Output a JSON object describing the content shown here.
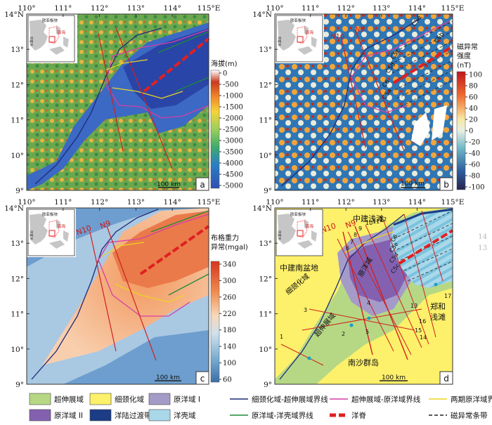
{
  "axes": {
    "lon_ticks": [
      "110°",
      "111°",
      "112°",
      "113°",
      "114°",
      "115°E"
    ],
    "lat_ticks": [
      "14°N",
      "13°",
      "12°",
      "11°",
      "10°",
      "9°"
    ]
  },
  "panels": [
    {
      "letter": "a",
      "scale": "100 km",
      "colorbar_title": "海拔(m)",
      "colorbar_ticks": [
        "0",
        "-500",
        "-1000",
        "-1500",
        "-2000",
        "-2500",
        "-3000",
        "-3500",
        "-4000",
        "-4500",
        "-5000"
      ]
    },
    {
      "letter": "b",
      "scale": "100 km",
      "colorbar_title_1": "磁异常",
      "colorbar_title_2": "强度",
      "colorbar_unit": "(nT)",
      "colorbar_ticks": [
        "100",
        "80",
        "60",
        "40",
        "20",
        "0",
        "-20",
        "-40",
        "-60",
        "-80",
        "-100"
      ],
      "labels": {
        "n10": "N10",
        "n9": "N9",
        "c5e": "C5e",
        "c5c": "C5c",
        "c5d": "C5d",
        "c6": "C6",
        "c5a": "C5a",
        "c5b": "C5b"
      }
    },
    {
      "letter": "c",
      "scale": "100 km",
      "colorbar_title_1": "布格重力",
      "colorbar_title_2": "异常(mgal)",
      "colorbar_ticks": [
        "340",
        "300",
        "260",
        "220",
        "180",
        "140",
        "100",
        "60"
      ],
      "labels": {
        "n10": "N10",
        "n9": "N9"
      }
    },
    {
      "letter": "d",
      "scale": "100 km",
      "labels": {
        "zhongjian_beach": "中建浅滩",
        "zhongjian_basin": "中建南盆地",
        "necking_zone": "细颈化域",
        "hyperextended_zone": "超伸展域",
        "proto_ocean": "原洋域",
        "zhenghe_1": "郑和",
        "zhenghe_2": "浅滩",
        "nansha": "南沙群岛",
        "n10": "N10",
        "n9": "N9",
        "c6": "C6",
        "c5e": "C5e",
        "c5d": "C5d",
        "c5c": "C5c"
      },
      "profile_numbers": [
        "1",
        "2",
        "3",
        "4",
        "5",
        "6",
        "7",
        "8",
        "9",
        "10",
        "11",
        "12",
        "13",
        "14",
        "15",
        "16",
        "17"
      ]
    }
  ],
  "inset": {
    "label_1": "欧亚板块",
    "label_2": "南海",
    "label_3": "印度洋"
  },
  "side_marks": [
    "14",
    "13"
  ],
  "legend": {
    "swatches": [
      {
        "label": "超伸展域",
        "color": "#b6d884"
      },
      {
        "label": "细颈化域",
        "color": "#fdf06a"
      },
      {
        "label": "原洋域 I",
        "color": "#a59bc8"
      },
      {
        "label": "原洋域 II",
        "color": "#8461b0"
      },
      {
        "label": "洋陆过渡带OCT",
        "color": "#1d3c86"
      },
      {
        "label": "洋壳域",
        "color": "#a8d8ea"
      }
    ],
    "lines": [
      {
        "label": "细颈化域-超伸展域界线",
        "color": "#1f2a78"
      },
      {
        "label": "超伸展域-原洋域界线",
        "color": "#d43fa5"
      },
      {
        "label": "两期原洋域界线",
        "color": "#ecd424"
      },
      {
        "label": "原洋域-洋壳域界线",
        "color": "#1d8a3a"
      },
      {
        "label": "洋脊",
        "color": "#e02020"
      },
      {
        "label": "磁异常条带",
        "color": "#222222"
      }
    ]
  }
}
